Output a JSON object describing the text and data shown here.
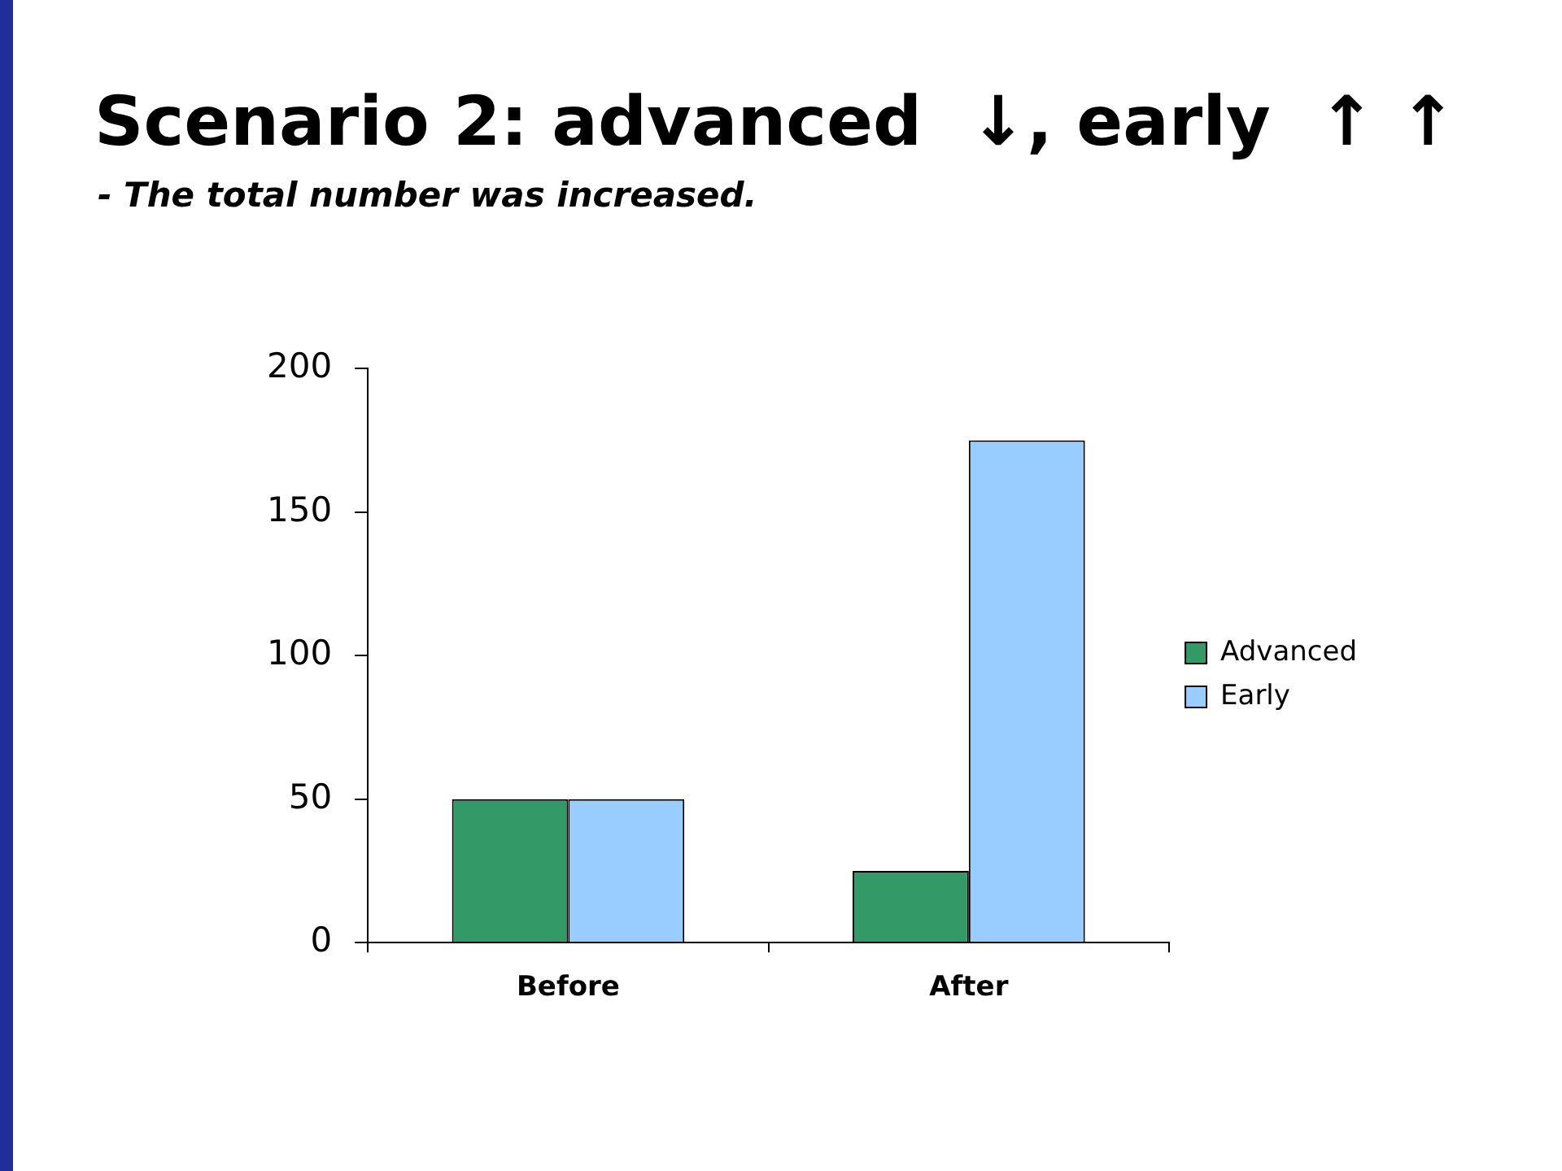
{
  "chart_data": {
    "type": "bar",
    "title": "Scenario 2: advanced  ↓, early  ↑ ↑",
    "subtitle": "- The total number was increased.",
    "categories": [
      "Before",
      "After"
    ],
    "series": [
      {
        "name": "Advanced",
        "color": "#339966",
        "values": [
          50,
          25
        ]
      },
      {
        "name": "Early",
        "color": "#99ccff",
        "values": [
          50,
          175
        ]
      }
    ],
    "ylim": [
      0,
      200
    ],
    "yticks": [
      0,
      50,
      100,
      150,
      200
    ],
    "grid": false,
    "legend": "right"
  }
}
